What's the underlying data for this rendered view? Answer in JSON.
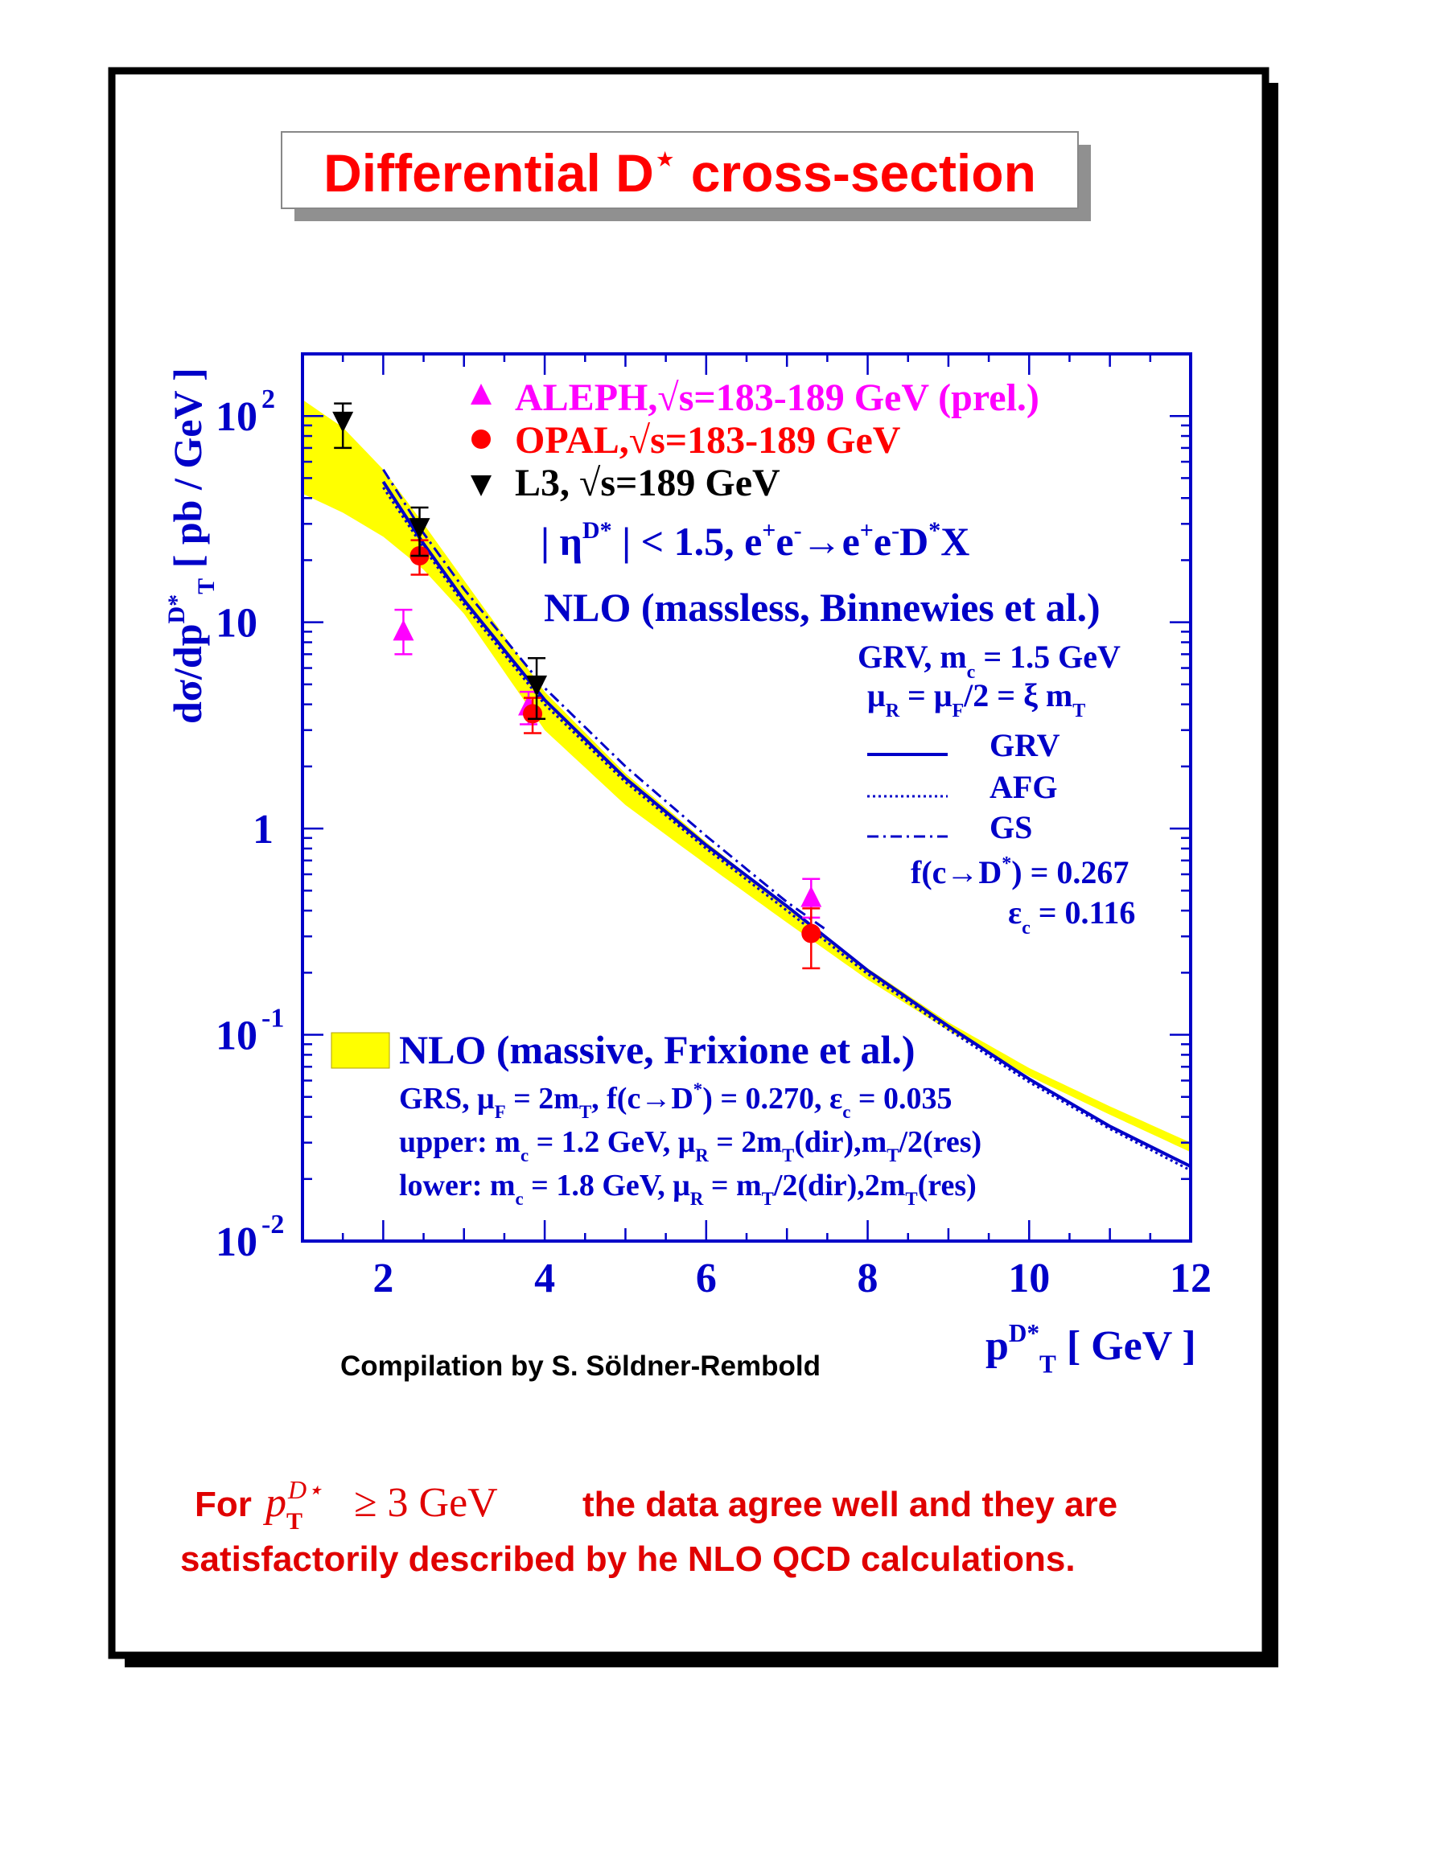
{
  "title": {
    "text": "Differential D",
    "sup": "⋆",
    "rest": " cross-section"
  },
  "credit": "Compilation by S. Söldner-Rembold",
  "conclusion": {
    "line1_prefix": "For",
    "line1_suffix": "the data agree well and they are",
    "line2": "satisfactorily described by he NLO QCD calculations.",
    "math_p": "p",
    "math_sup": "D⋆",
    "math_sub": "T",
    "math_rel": "≥ 3 GeV"
  },
  "colors": {
    "aleph": "#ff00ff",
    "opal": "#ff0000",
    "l3": "#000000",
    "theory": "#0000c8",
    "band": "#ffff00",
    "title_text": "#ff0000",
    "conclusion_text": "#e00000"
  },
  "chart_data": {
    "type": "scatter",
    "y_scale": "log",
    "xlim": [
      1,
      12
    ],
    "ylim": [
      0.01,
      200
    ],
    "grid": false,
    "x_ticks": [
      "2",
      "4",
      "6",
      "8",
      "10",
      "12"
    ],
    "y_ticks": [
      {
        "value": 100,
        "base": "10",
        "exp": "2"
      },
      {
        "value": 10,
        "base": "10",
        "exp": ""
      },
      {
        "value": 1,
        "base": "1",
        "exp": ""
      },
      {
        "value": 0.1,
        "base": "10",
        "exp": "-1"
      },
      {
        "value": 0.01,
        "base": "10",
        "exp": "-2"
      }
    ],
    "xlabel": {
      "p": "p",
      "sup": "D*",
      "sub": "T",
      "unit": " [ GeV ]"
    },
    "ylabel": {
      "pre": "dσ/dp",
      "sup": "D*",
      "sub": "T",
      "unit": " [ pb / GeV ]"
    },
    "legend": {
      "aleph": "ALEPH,√s=183-189 GeV (prel.)",
      "opal": "OPAL,√s=183-189 GeV",
      "l3": "L3, √s=189 GeV",
      "cut": {
        "a": "| η",
        "a_sup": "D*",
        "b": " | < 1.5, e",
        "b_sup1": "+",
        "c": "e",
        "c_sup2": "-",
        "d": "→e",
        "d_sup3": "+",
        "e": "e",
        "e_sup4": "-",
        "f": "D",
        "f_sup5": "*",
        "g": "X"
      },
      "nlo_massless": "NLO (massless, Binnewies et al.)",
      "grv_line": {
        "a": "GRV, m",
        "sub": "c",
        "b": " = 1.5 GeV"
      },
      "mu_line": {
        "a": "μ",
        "sub1": "R",
        "b": " = μ",
        "sub2": "F",
        "c": "/2 = ξ m",
        "sub3": "T"
      },
      "grv": "GRV",
      "afg": "AFG",
      "gs": "GS",
      "frag": {
        "a": "f(c→D",
        "sup": "*",
        "b": ") = 0.267"
      },
      "eff": {
        "a": "ε",
        "sub": "c",
        "b": " = 0.116"
      },
      "nlo_massive": "NLO (massive, Frixione et al.)",
      "grs_line": {
        "a": "GRS, μ",
        "s1": "F",
        "b": " = 2m",
        "s2": "T",
        "c": ", f(c→D",
        "sup": "*",
        "d": ") = 0.270, ε",
        "s3": "c",
        "e": " = 0.035"
      },
      "upper_line": {
        "a": "upper: m",
        "s1": "c",
        "b": " = 1.2 GeV,  μ",
        "s2": "R",
        "c": " = 2m",
        "s3": "T",
        "d": "(dir),m",
        "s4": "T",
        "e": "/2(res)"
      },
      "lower_line": {
        "a": "lower: m",
        "s1": "c",
        "b": " = 1.8 GeV,  μ",
        "s2": "R",
        "c": " = m",
        "s3": "T",
        "d": "/2(dir),2m",
        "s4": "T",
        "e": "(res)"
      }
    },
    "series": [
      {
        "name": "ALEPH,√s=183-189 GeV (prel.)",
        "marker": "triangle-up",
        "x": [
          2.25,
          3.8,
          7.3
        ],
        "y": [
          9.0,
          3.9,
          0.46
        ],
        "err_low": [
          7.0,
          3.2,
          0.37
        ],
        "err_high": [
          11.5,
          4.6,
          0.57
        ]
      },
      {
        "name": "OPAL,√s=183-189 GeV",
        "marker": "circle",
        "x": [
          2.45,
          3.85,
          7.3
        ],
        "y": [
          21.0,
          3.6,
          0.31
        ],
        "err_low": [
          17.0,
          2.9,
          0.21
        ],
        "err_high": [
          25.0,
          4.3,
          0.41
        ]
      },
      {
        "name": "L3, √s=189 GeV",
        "marker": "triangle-down",
        "x": [
          1.5,
          2.45,
          3.9
        ],
        "y": [
          95.0,
          29.0,
          5.0
        ],
        "err_low": [
          70.0,
          21.0,
          3.4
        ],
        "err_high": [
          115.0,
          36.0,
          6.7
        ]
      }
    ],
    "band": {
      "upper": [
        [
          1,
          120
        ],
        [
          1.5,
          88
        ],
        [
          2,
          55
        ],
        [
          2.5,
          30
        ],
        [
          3,
          16
        ],
        [
          4,
          4.6
        ],
        [
          5,
          1.85
        ],
        [
          6,
          0.86
        ],
        [
          7,
          0.42
        ],
        [
          8,
          0.21
        ],
        [
          9,
          0.115
        ],
        [
          10,
          0.069
        ],
        [
          11,
          0.045
        ],
        [
          12,
          0.03
        ]
      ],
      "lower": [
        [
          1,
          42
        ],
        [
          1.5,
          34
        ],
        [
          2,
          26
        ],
        [
          2.5,
          18
        ],
        [
          3,
          11
        ],
        [
          4,
          3.0
        ],
        [
          5,
          1.3
        ],
        [
          6,
          0.67
        ],
        [
          7,
          0.35
        ],
        [
          8,
          0.185
        ],
        [
          9,
          0.105
        ],
        [
          10,
          0.063
        ],
        [
          11,
          0.041
        ],
        [
          12,
          0.027
        ]
      ]
    },
    "curves": [
      {
        "name": "GRV",
        "style": "solid",
        "points": [
          [
            2,
            48
          ],
          [
            2.5,
            24
          ],
          [
            3,
            12.8
          ],
          [
            4,
            4.2
          ],
          [
            5,
            1.75
          ],
          [
            6,
            0.83
          ],
          [
            7,
            0.42
          ],
          [
            8,
            0.205
          ],
          [
            9,
            0.11
          ],
          [
            10,
            0.061
          ],
          [
            11,
            0.036
          ],
          [
            12,
            0.023
          ]
        ]
      },
      {
        "name": "AFG",
        "style": "dotted",
        "points": [
          [
            2,
            45
          ],
          [
            2.5,
            23
          ],
          [
            3,
            12.2
          ],
          [
            4,
            4.0
          ],
          [
            5,
            1.68
          ],
          [
            6,
            0.8
          ],
          [
            7,
            0.4
          ],
          [
            8,
            0.197
          ],
          [
            9,
            0.106
          ],
          [
            10,
            0.059
          ],
          [
            11,
            0.035
          ],
          [
            12,
            0.022
          ]
        ]
      },
      {
        "name": "GS",
        "style": "dashdot",
        "points": [
          [
            2,
            55
          ],
          [
            2.5,
            27
          ],
          [
            3,
            14.5
          ],
          [
            4,
            4.8
          ],
          [
            5,
            2.0
          ],
          [
            6,
            0.92
          ],
          [
            7,
            0.44
          ],
          [
            7.5,
            0.32
          ]
        ]
      }
    ]
  }
}
